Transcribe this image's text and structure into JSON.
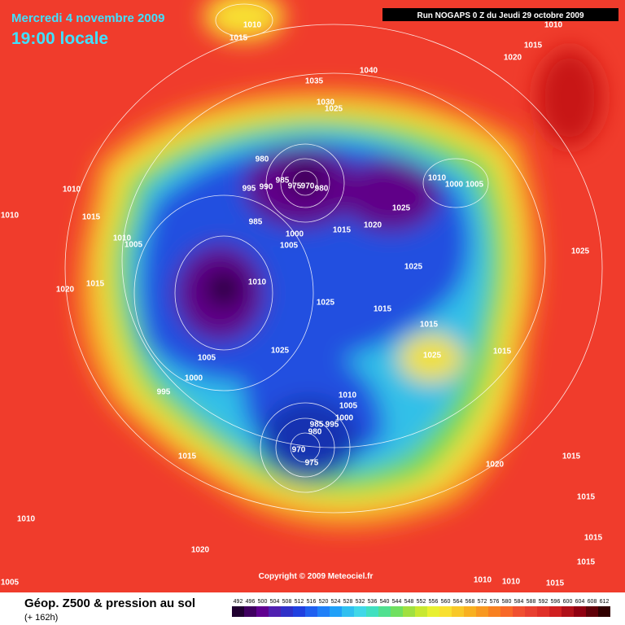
{
  "header": {
    "date": "Mercredi 4 novembre 2009",
    "time": "19:00 locale",
    "run": "Run NOGAPS 0 Z du Jeudi 29 octobre 2009"
  },
  "copyright": "Copyright © 2009 Meteociel.fr",
  "footer": {
    "title": "Géop. Z500 & pression au sol",
    "lead": "(+ 162h)"
  },
  "isobar_labels": [
    1010,
    1015,
    1010,
    1015,
    1020,
    1040,
    1035,
    1030,
    1025,
    980,
    985,
    975,
    970,
    980,
    995,
    990,
    985,
    1000,
    1005,
    1015,
    1020,
    1025,
    1010,
    1000,
    1005,
    1010,
    1015,
    1010,
    1010,
    1005,
    1015,
    1020,
    1010,
    1025,
    1025,
    1025,
    1015,
    1015,
    1025,
    1005,
    1000,
    995,
    1025,
    1015,
    1010,
    1005,
    1000,
    985,
    995,
    980,
    970,
    975,
    1020,
    1015,
    1015,
    1015,
    1010,
    1015,
    1020,
    1015,
    1005,
    1010,
    1015,
    1010
  ],
  "scale": {
    "values": [
      492,
      496,
      500,
      504,
      508,
      512,
      516,
      520,
      524,
      528,
      532,
      536,
      540,
      544,
      548,
      552,
      556,
      560,
      564,
      568,
      572,
      576,
      580,
      584,
      588,
      592,
      596,
      600,
      604,
      608,
      612
    ],
    "colors": [
      "#200030",
      "#400060",
      "#600090",
      "#5020b0",
      "#3030c8",
      "#2040e0",
      "#2060f0",
      "#2080f8",
      "#20a0f8",
      "#30c0f0",
      "#40d8e8",
      "#40e0c0",
      "#50e090",
      "#70e060",
      "#a0e040",
      "#c8e830",
      "#e8f030",
      "#f8e030",
      "#f8c828",
      "#f8b020",
      "#f89820",
      "#f88020",
      "#f86828",
      "#f05030",
      "#e84030",
      "#e03028",
      "#d02020",
      "#b01018",
      "#900010",
      "#600008",
      "#300000"
    ]
  }
}
